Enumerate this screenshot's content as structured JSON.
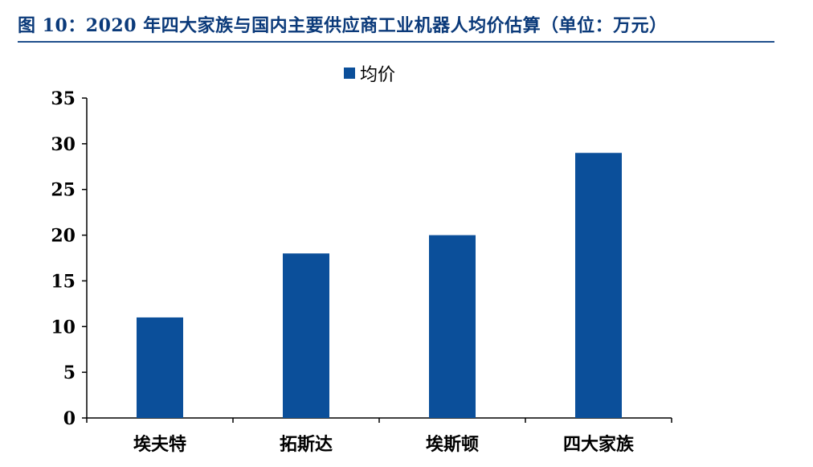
{
  "chart_data": {
    "type": "bar",
    "title": "图 10：2020 年四大家族与国内主要供应商工业机器人均价估算（单位：万元）",
    "categories": [
      "埃夫特",
      "拓斯达",
      "埃斯顿",
      "四大家族"
    ],
    "series": [
      {
        "name": "均价",
        "values": [
          11,
          18,
          20,
          29
        ],
        "color": "#0b4f9a"
      }
    ],
    "xlabel": "",
    "ylabel": "",
    "ylim": [
      0,
      35
    ],
    "yticks": [
      0,
      5,
      10,
      15,
      20,
      25,
      30,
      35
    ],
    "grid": false,
    "legend": "top-center"
  },
  "colors": {
    "title": "#0b3a7a",
    "title_rule": "#1f4e8c",
    "bar": "#0b4f9a",
    "axis": "#000000"
  }
}
